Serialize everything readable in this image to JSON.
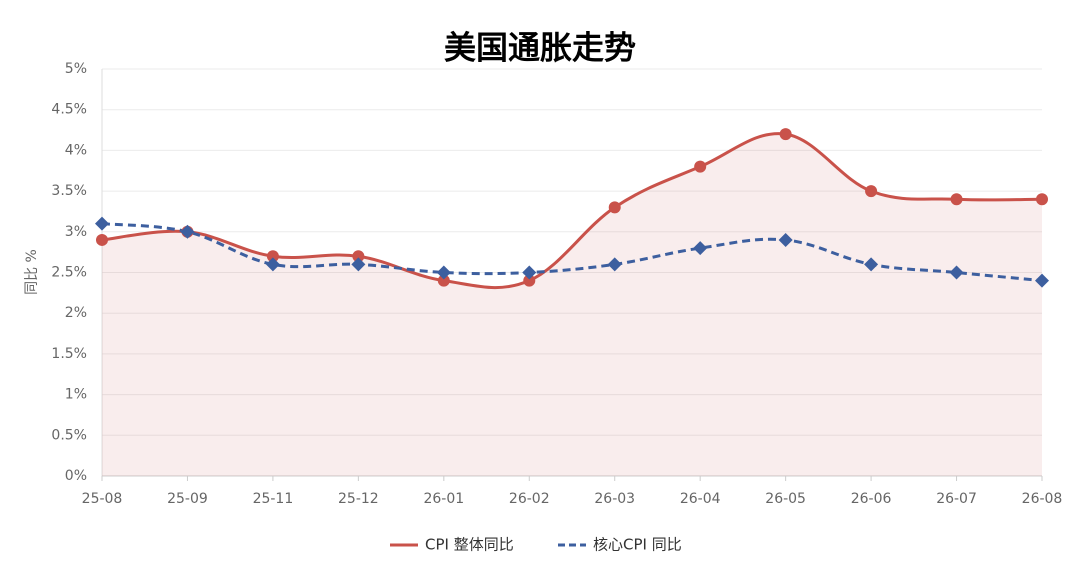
{
  "chart_data": {
    "type": "line",
    "title": "美国通胀走势",
    "y_label": "同比 %",
    "categories": [
      "25-08",
      "25-09",
      "25-11",
      "25-12",
      "26-01",
      "26-02",
      "26-03",
      "26-04",
      "26-05",
      "26-06",
      "26-07",
      "26-08"
    ],
    "series": [
      {
        "name": "CPI 整体同比",
        "color": "#c9524a",
        "values": [
          2.9,
          3.0,
          2.7,
          2.7,
          2.4,
          2.4,
          3.3,
          3.8,
          4.2,
          3.5,
          3.4,
          3.4
        ],
        "area": true,
        "marker": "circle",
        "dashed": false
      },
      {
        "name": "核心CPI 同比",
        "color": "#3d5f9f",
        "values": [
          3.1,
          3.0,
          2.6,
          2.6,
          2.5,
          2.5,
          2.6,
          2.8,
          2.9,
          2.6,
          2.5,
          2.4
        ],
        "area": false,
        "marker": "diamond",
        "dashed": true
      }
    ],
    "ylim": [
      0,
      5
    ],
    "yticks": [
      {
        "value": 0,
        "label": "0%"
      },
      {
        "value": 0.5,
        "label": "0.5%"
      },
      {
        "value": 1,
        "label": "1%"
      },
      {
        "value": 1.5,
        "label": "1.5%"
      },
      {
        "value": 2,
        "label": "2%"
      },
      {
        "value": 2.5,
        "label": "2.5%"
      },
      {
        "value": 3,
        "label": "3%"
      },
      {
        "value": 3.5,
        "label": "3.5%"
      },
      {
        "value": 4,
        "label": "4%"
      },
      {
        "value": 4.5,
        "label": "4.5%"
      },
      {
        "value": 5,
        "label": "5%"
      }
    ],
    "grid": true,
    "legend": "bottom"
  }
}
